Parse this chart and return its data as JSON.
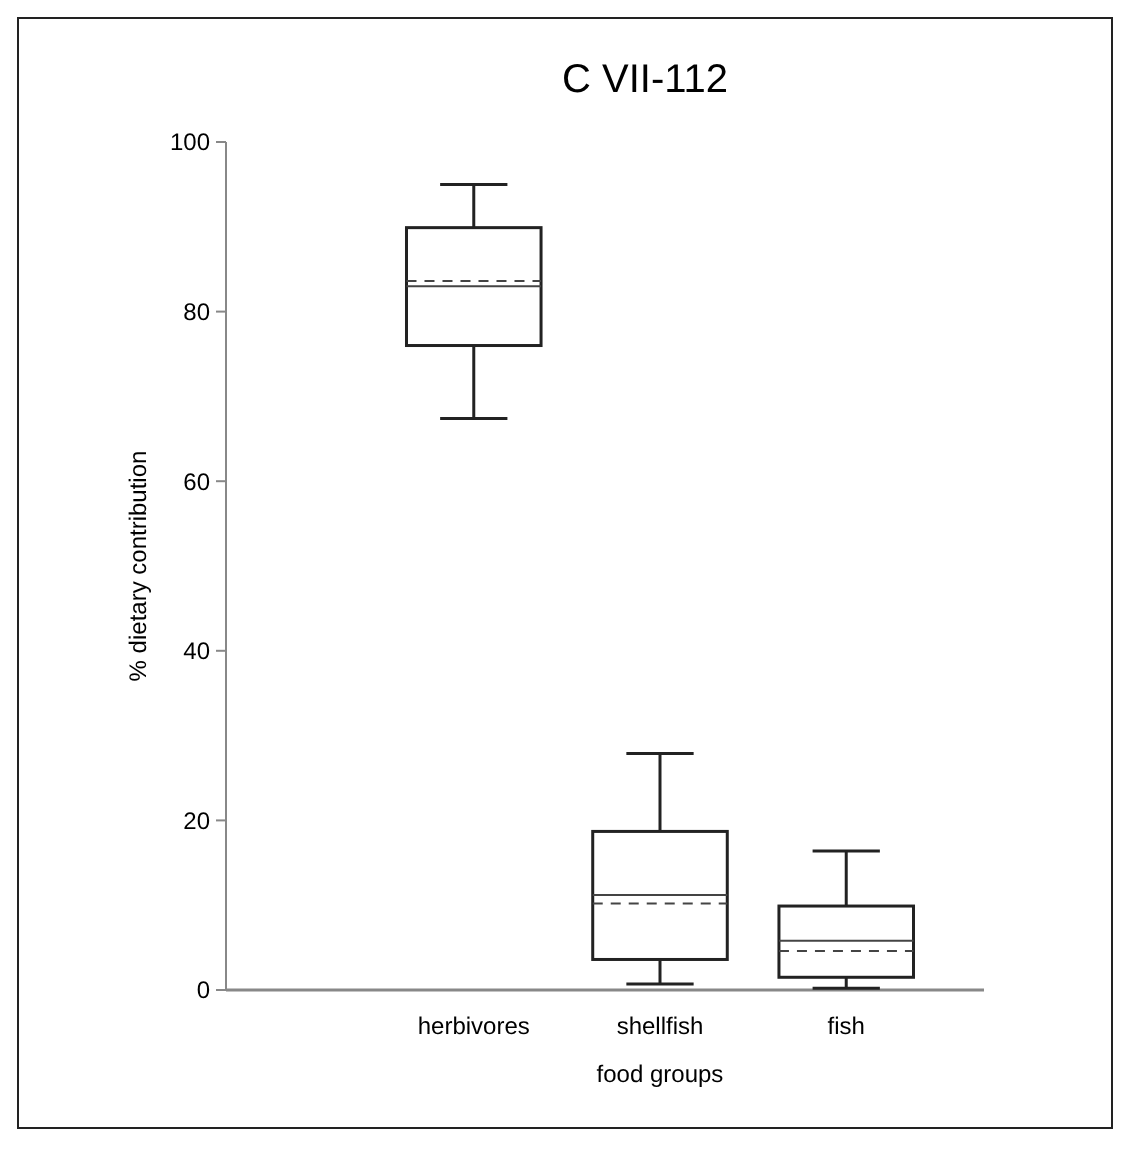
{
  "chart_data": {
    "type": "box",
    "title": "C VII-112",
    "xlabel": "food groups",
    "ylabel": "% dietary contribution",
    "categories": [
      "herbivores",
      "shellfish",
      "fish"
    ],
    "boxes": [
      {
        "low": 67.4,
        "q1": 76,
        "median": 83,
        "q3": 89.9,
        "high": 95,
        "mean": 83.6
      },
      {
        "low": 0.7,
        "q1": 3.6,
        "median": 11.2,
        "q3": 18.7,
        "high": 27.9,
        "mean": 10.2
      },
      {
        "low": 0.2,
        "q1": 1.5,
        "median": 5.8,
        "q3": 9.9,
        "high": 16.4,
        "mean": 4.6
      }
    ],
    "ylim": [
      0,
      100
    ],
    "yticks": [
      0,
      20,
      40,
      60,
      80,
      100
    ],
    "grid": false
  }
}
